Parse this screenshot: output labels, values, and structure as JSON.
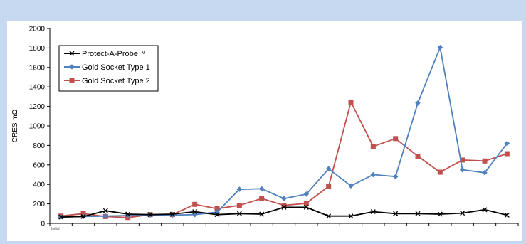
{
  "chart_data": {
    "type": "line",
    "title": "",
    "xlabel": "",
    "ylabel": "CRES mΩ",
    "ylim": [
      0,
      2000
    ],
    "yticks": [
      0,
      200,
      400,
      600,
      800,
      1000,
      1200,
      1400,
      1600,
      1800,
      2000
    ],
    "x_first_label": "Initial",
    "x_count": 21,
    "legend_position": "top-left",
    "grid": false,
    "series": [
      {
        "name": "Protect-A-Probe™",
        "color": "#000000",
        "marker": "x",
        "values": [
          65,
          70,
          130,
          95,
          90,
          95,
          120,
          90,
          100,
          95,
          165,
          165,
          75,
          75,
          120,
          100,
          100,
          95,
          105,
          140,
          85
        ]
      },
      {
        "name": "Gold Socket Type 1",
        "color": "#4f81bd",
        "marker": "diamond",
        "values": [
          65,
          70,
          75,
          80,
          85,
          85,
          90,
          115,
          350,
          355,
          255,
          300,
          560,
          385,
          500,
          480,
          1235,
          1805,
          550,
          520,
          820
        ]
      },
      {
        "name": "Gold Socket Type 2",
        "color": "#c0504d",
        "marker": "square",
        "values": [
          75,
          100,
          70,
          60,
          90,
          90,
          195,
          150,
          185,
          255,
          185,
          205,
          380,
          1245,
          790,
          870,
          690,
          525,
          650,
          640,
          715
        ]
      }
    ]
  }
}
